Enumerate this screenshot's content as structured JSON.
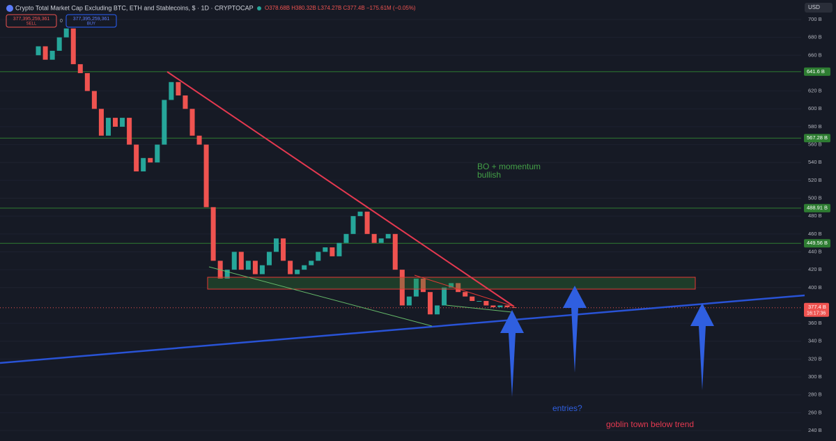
{
  "header": {
    "title": "Crypto Total Market Cap Excluding BTC, ETH and Stablecoins, $ · 1D · CRYPTOCAP",
    "ohlc": "O378.68B H380.32B L374.27B C377.4B −175.61M (−0.05%)",
    "sell_price": "377,395,259,361",
    "sell_label": "SELL",
    "spread": "0",
    "buy_price": "377,395,259,361",
    "buy_label": "BUY",
    "currency": "USD"
  },
  "chart_data": {
    "type": "candlestick",
    "values": [
      660,
      670,
      655,
      665,
      680,
      690,
      650,
      640,
      620,
      600,
      570,
      590,
      580,
      590,
      560,
      530,
      545,
      540,
      560,
      610,
      630,
      615,
      600,
      570,
      560,
      490,
      430,
      410,
      420,
      440,
      420,
      430,
      415,
      425,
      440,
      455,
      430,
      415,
      420,
      425,
      430,
      440,
      445,
      435,
      450,
      460,
      480,
      485,
      460,
      450,
      455,
      460,
      420,
      380,
      390,
      410,
      395,
      370,
      380,
      400,
      405,
      395,
      390,
      385,
      385,
      380,
      378,
      380,
      378,
      377.4
    ],
    "up_color": "#26a69a",
    "down_color": "#ef5350",
    "ylim": [
      240,
      700
    ],
    "yticks": [
      {
        "value": 700,
        "label": "700 B"
      },
      {
        "value": 680,
        "label": "680 B"
      },
      {
        "value": 660,
        "label": "660 B"
      },
      {
        "value": 620,
        "label": "620 B"
      },
      {
        "value": 600,
        "label": "600 B"
      },
      {
        "value": 580,
        "label": "580 B"
      },
      {
        "value": 560,
        "label": "560 B"
      },
      {
        "value": 540,
        "label": "540 B"
      },
      {
        "value": 520,
        "label": "520 B"
      },
      {
        "value": 500,
        "label": "500 B"
      },
      {
        "value": 480,
        "label": "480 B"
      },
      {
        "value": 460,
        "label": "460 B"
      },
      {
        "value": 440,
        "label": "440 B"
      },
      {
        "value": 420,
        "label": "420 B"
      },
      {
        "value": 400,
        "label": "400 B"
      },
      {
        "value": 360,
        "label": "360 B"
      },
      {
        "value": 340,
        "label": "340 B"
      },
      {
        "value": 320,
        "label": "320 B"
      },
      {
        "value": 300,
        "label": "300 B"
      },
      {
        "value": 280,
        "label": "280 B"
      },
      {
        "value": 260,
        "label": "260 B"
      },
      {
        "value": 240,
        "label": "240 B"
      }
    ],
    "levels": [
      {
        "value": 641.6,
        "label": "641.6 B"
      },
      {
        "value": 567.28,
        "label": "567.28 B"
      },
      {
        "value": 488.91,
        "label": "488.91 B"
      },
      {
        "value": 449.56,
        "label": "449.56 B"
      }
    ],
    "last": {
      "value": 377.4,
      "label": "377.4 B"
    },
    "countdown": "16:17:36"
  },
  "annotations": {
    "bo": "BO + momentum",
    "bullish": "bullish",
    "entries": "entries?",
    "goblin": "goblin town below trend"
  }
}
